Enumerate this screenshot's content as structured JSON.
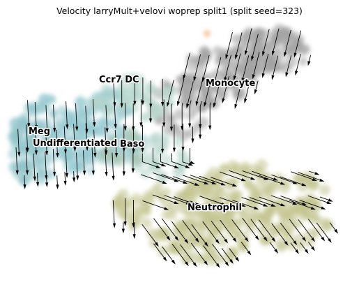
{
  "chart_data": {
    "type": "scatter",
    "title": "Velocity larryMult+velovi woprep split1 (split seed=323)",
    "xlabel": "",
    "ylabel": "",
    "axes_visible": false,
    "grid": false,
    "legend": "none",
    "overlay": "velocity streamlines with arrowheads",
    "clusters": [
      {
        "name": "Monocyte",
        "color": "#a3a3a3"
      },
      {
        "name": "Neutrophil",
        "color": "#c2c490"
      },
      {
        "name": "Undifferentiated",
        "color": "#95c8cf"
      },
      {
        "name": "Ccr7 DC",
        "color": "#b6d6cc"
      },
      {
        "name": "Meg",
        "color": "#8fc2c9"
      },
      {
        "name": "Baso",
        "color": "#aac6b6"
      },
      {
        "name": "",
        "color": "#f6c7a6"
      }
    ]
  }
}
